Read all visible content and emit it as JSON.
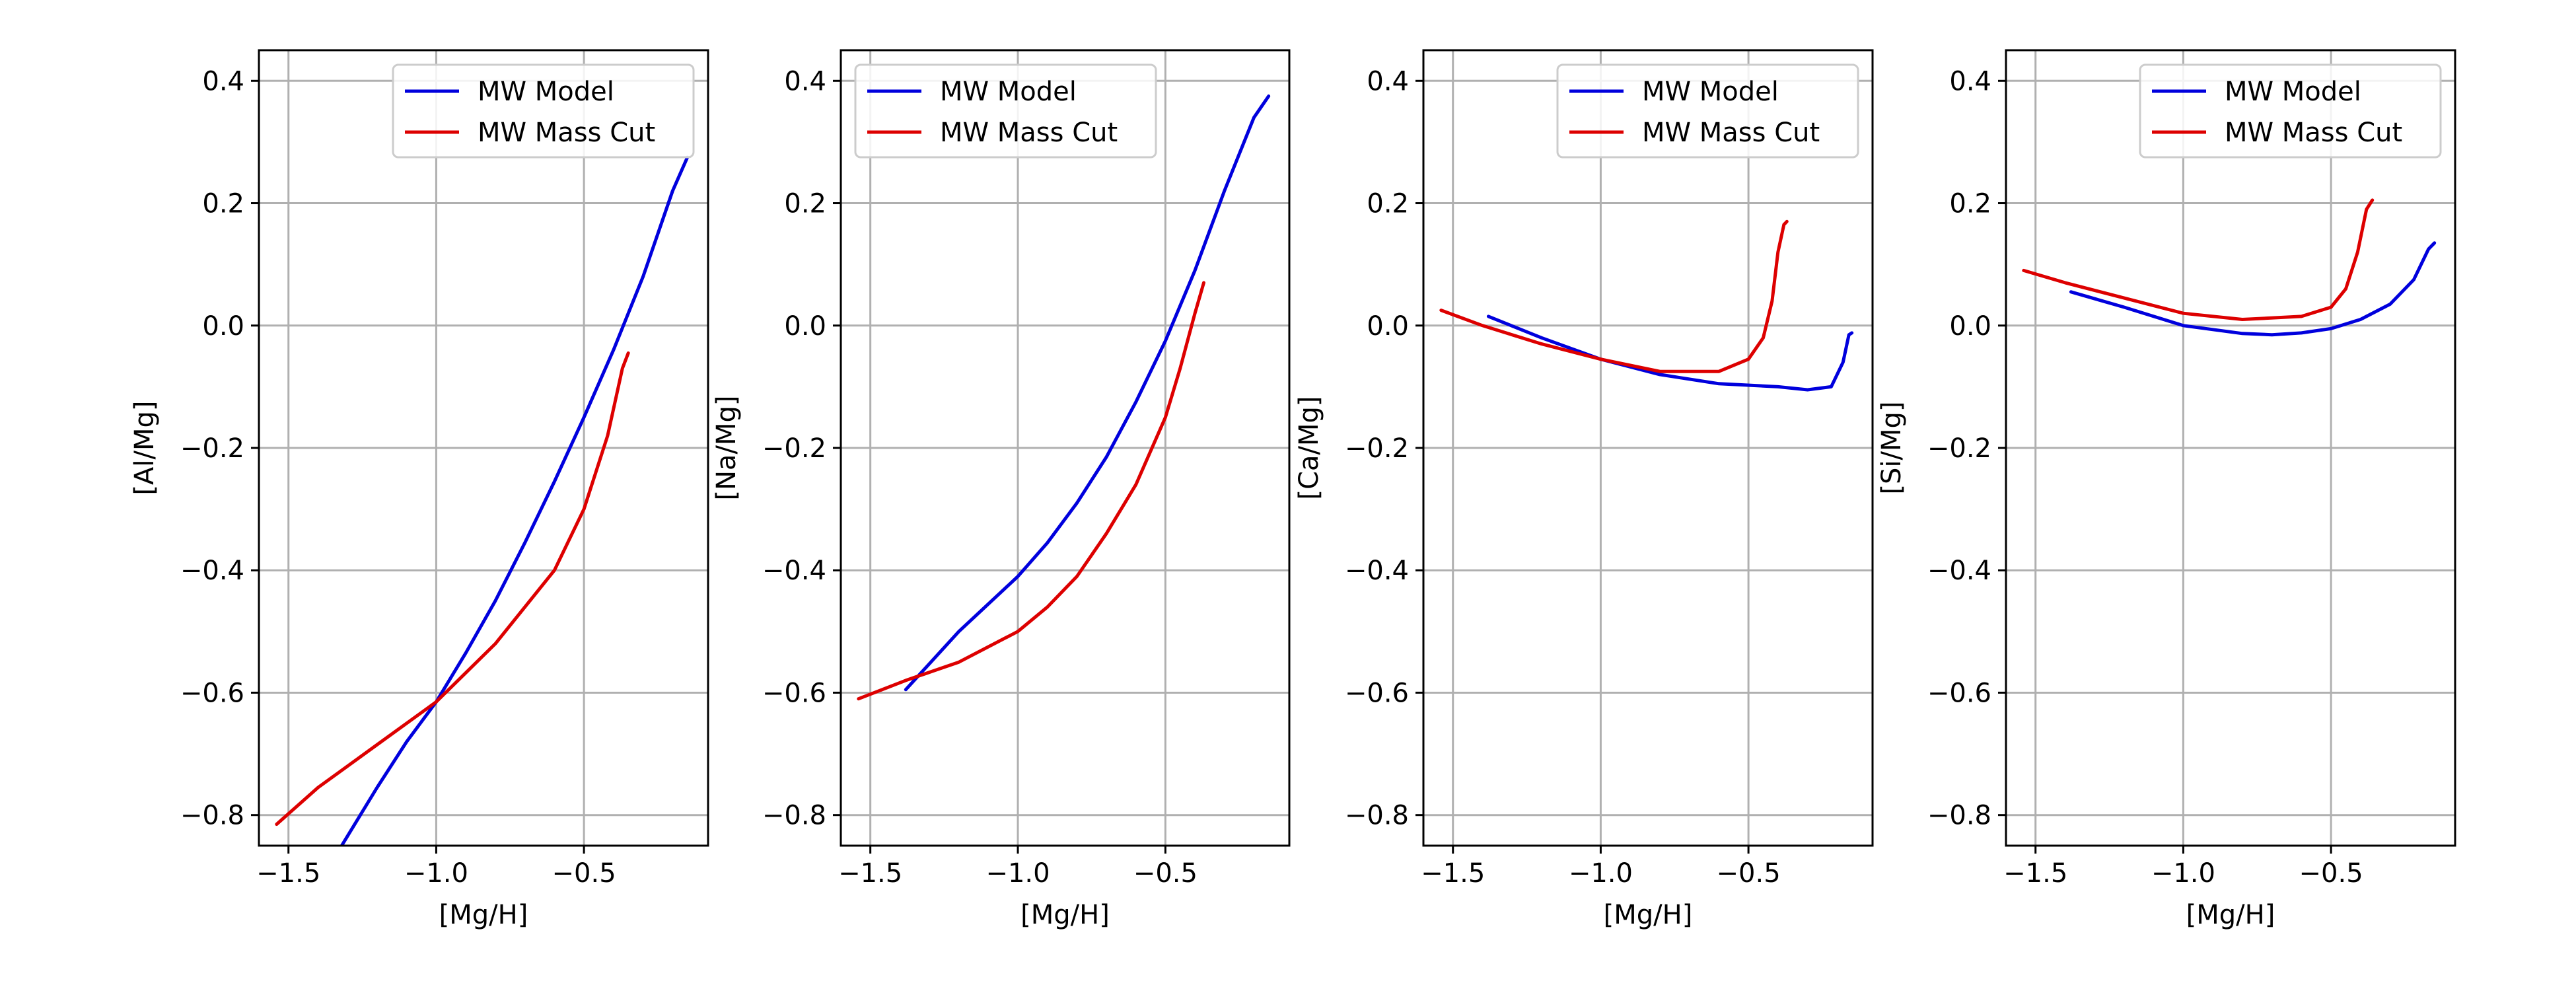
{
  "chart_data": [
    {
      "type": "line",
      "xlabel": "[Mg/H]",
      "ylabel": "[Al/Mg]",
      "xlim": [
        -1.6,
        -0.08
      ],
      "ylim": [
        -0.85,
        0.45
      ],
      "xticks": [
        -1.5,
        -1.0,
        -0.5
      ],
      "xtick_labels": [
        "−1.5",
        "−1.0",
        "−0.5"
      ],
      "yticks": [
        -0.8,
        -0.6,
        -0.4,
        -0.2,
        0.0,
        0.2,
        0.4
      ],
      "ytick_labels": [
        "−0.8",
        "−0.6",
        "−0.4",
        "−0.2",
        "0.0",
        "0.2",
        "0.4"
      ],
      "grid": true,
      "legend_position": "upper-right",
      "series": [
        {
          "name": "MW Model",
          "color": "#0000dd",
          "points": [
            [
              -1.32,
              -0.85
            ],
            [
              -1.2,
              -0.755
            ],
            [
              -1.1,
              -0.68
            ],
            [
              -1.0,
              -0.615
            ],
            [
              -0.9,
              -0.535
            ],
            [
              -0.8,
              -0.45
            ],
            [
              -0.7,
              -0.355
            ],
            [
              -0.6,
              -0.255
            ],
            [
              -0.5,
              -0.15
            ],
            [
              -0.4,
              -0.04
            ],
            [
              -0.3,
              0.08
            ],
            [
              -0.2,
              0.22
            ],
            [
              -0.15,
              0.275
            ]
          ]
        },
        {
          "name": "MW Mass Cut",
          "color": "#dd0000",
          "points": [
            [
              -1.54,
              -0.815
            ],
            [
              -1.4,
              -0.755
            ],
            [
              -1.2,
              -0.685
            ],
            [
              -1.0,
              -0.615
            ],
            [
              -0.8,
              -0.52
            ],
            [
              -0.6,
              -0.4
            ],
            [
              -0.5,
              -0.3
            ],
            [
              -0.42,
              -0.18
            ],
            [
              -0.37,
              -0.07
            ],
            [
              -0.35,
              -0.045
            ]
          ]
        }
      ]
    },
    {
      "type": "line",
      "xlabel": "[Mg/H]",
      "ylabel": "[Na/Mg]",
      "xlim": [
        -1.6,
        -0.08
      ],
      "ylim": [
        -0.85,
        0.45
      ],
      "xticks": [
        -1.5,
        -1.0,
        -0.5
      ],
      "xtick_labels": [
        "−1.5",
        "−1.0",
        "−0.5"
      ],
      "yticks": [
        -0.8,
        -0.6,
        -0.4,
        -0.2,
        0.0,
        0.2,
        0.4
      ],
      "ytick_labels": [
        "−0.8",
        "−0.6",
        "−0.4",
        "−0.2",
        "0.0",
        "0.2",
        "0.4"
      ],
      "grid": true,
      "legend_position": "upper-left",
      "series": [
        {
          "name": "MW Model",
          "color": "#0000dd",
          "points": [
            [
              -1.38,
              -0.595
            ],
            [
              -1.2,
              -0.5
            ],
            [
              -1.0,
              -0.41
            ],
            [
              -0.9,
              -0.355
            ],
            [
              -0.8,
              -0.29
            ],
            [
              -0.7,
              -0.215
            ],
            [
              -0.6,
              -0.125
            ],
            [
              -0.5,
              -0.025
            ],
            [
              -0.4,
              0.09
            ],
            [
              -0.3,
              0.22
            ],
            [
              -0.2,
              0.34
            ],
            [
              -0.15,
              0.375
            ]
          ]
        },
        {
          "name": "MW Mass Cut",
          "color": "#dd0000",
          "points": [
            [
              -1.54,
              -0.61
            ],
            [
              -1.38,
              -0.58
            ],
            [
              -1.2,
              -0.55
            ],
            [
              -1.0,
              -0.5
            ],
            [
              -0.9,
              -0.46
            ],
            [
              -0.8,
              -0.41
            ],
            [
              -0.7,
              -0.34
            ],
            [
              -0.6,
              -0.26
            ],
            [
              -0.5,
              -0.15
            ],
            [
              -0.45,
              -0.07
            ],
            [
              -0.4,
              0.02
            ],
            [
              -0.37,
              0.07
            ]
          ]
        }
      ]
    },
    {
      "type": "line",
      "xlabel": "[Mg/H]",
      "ylabel": "[Ca/Mg]",
      "xlim": [
        -1.6,
        -0.08
      ],
      "ylim": [
        -0.85,
        0.45
      ],
      "xticks": [
        -1.5,
        -1.0,
        -0.5
      ],
      "xtick_labels": [
        "−1.5",
        "−1.0",
        "−0.5"
      ],
      "yticks": [
        -0.8,
        -0.6,
        -0.4,
        -0.2,
        0.0,
        0.2,
        0.4
      ],
      "ytick_labels": [
        "−0.8",
        "−0.6",
        "−0.4",
        "−0.2",
        "0.0",
        "0.2",
        "0.4"
      ],
      "grid": true,
      "legend_position": "upper-right",
      "series": [
        {
          "name": "MW Model",
          "color": "#0000dd",
          "points": [
            [
              -1.38,
              0.015
            ],
            [
              -1.2,
              -0.02
            ],
            [
              -1.0,
              -0.055
            ],
            [
              -0.8,
              -0.08
            ],
            [
              -0.6,
              -0.095
            ],
            [
              -0.4,
              -0.1
            ],
            [
              -0.3,
              -0.105
            ],
            [
              -0.22,
              -0.1
            ],
            [
              -0.18,
              -0.06
            ],
            [
              -0.16,
              -0.015
            ],
            [
              -0.15,
              -0.012
            ]
          ]
        },
        {
          "name": "MW Mass Cut",
          "color": "#dd0000",
          "points": [
            [
              -1.54,
              0.025
            ],
            [
              -1.4,
              0.0
            ],
            [
              -1.2,
              -0.03
            ],
            [
              -1.0,
              -0.055
            ],
            [
              -0.8,
              -0.075
            ],
            [
              -0.6,
              -0.075
            ],
            [
              -0.5,
              -0.055
            ],
            [
              -0.45,
              -0.02
            ],
            [
              -0.42,
              0.04
            ],
            [
              -0.4,
              0.12
            ],
            [
              -0.38,
              0.165
            ],
            [
              -0.37,
              0.17
            ]
          ]
        }
      ]
    },
    {
      "type": "line",
      "xlabel": "[Mg/H]",
      "ylabel": "[Si/Mg]",
      "xlim": [
        -1.6,
        -0.08
      ],
      "ylim": [
        -0.85,
        0.45
      ],
      "xticks": [
        -1.5,
        -1.0,
        -0.5
      ],
      "xtick_labels": [
        "−1.5",
        "−1.0",
        "−0.5"
      ],
      "yticks": [
        -0.8,
        -0.6,
        -0.4,
        -0.2,
        0.0,
        0.2,
        0.4
      ],
      "ytick_labels": [
        "−0.8",
        "−0.6",
        "−0.4",
        "−0.2",
        "0.0",
        "0.2",
        "0.4"
      ],
      "grid": true,
      "legend_position": "upper-right",
      "series": [
        {
          "name": "MW Model",
          "color": "#0000dd",
          "points": [
            [
              -1.38,
              0.055
            ],
            [
              -1.2,
              0.03
            ],
            [
              -1.0,
              0.0
            ],
            [
              -0.8,
              -0.013
            ],
            [
              -0.7,
              -0.015
            ],
            [
              -0.6,
              -0.012
            ],
            [
              -0.5,
              -0.005
            ],
            [
              -0.4,
              0.01
            ],
            [
              -0.3,
              0.035
            ],
            [
              -0.22,
              0.075
            ],
            [
              -0.17,
              0.125
            ],
            [
              -0.15,
              0.135
            ]
          ]
        },
        {
          "name": "MW Mass Cut",
          "color": "#dd0000",
          "points": [
            [
              -1.54,
              0.09
            ],
            [
              -1.4,
              0.07
            ],
            [
              -1.2,
              0.045
            ],
            [
              -1.0,
              0.02
            ],
            [
              -0.8,
              0.01
            ],
            [
              -0.6,
              0.015
            ],
            [
              -0.5,
              0.03
            ],
            [
              -0.45,
              0.06
            ],
            [
              -0.41,
              0.12
            ],
            [
              -0.38,
              0.19
            ],
            [
              -0.36,
              0.205
            ]
          ]
        }
      ]
    }
  ]
}
